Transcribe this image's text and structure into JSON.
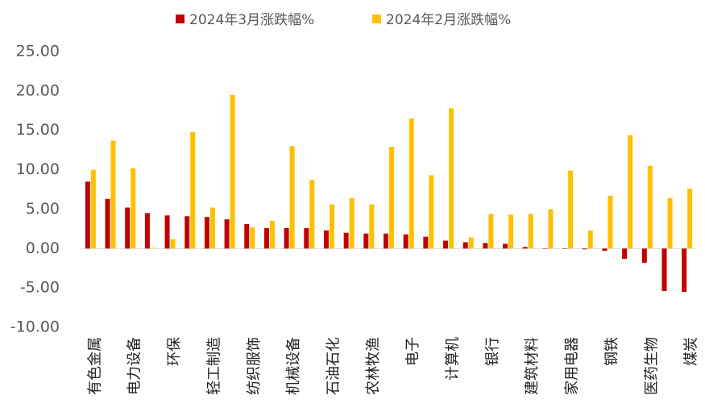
{
  "chart_data": {
    "type": "bar",
    "categories": [
      "有色金属",
      null,
      "电力设备",
      null,
      "环保",
      null,
      "轻工制造",
      null,
      "纺织服饰",
      null,
      "机械设备",
      null,
      "石油石化",
      null,
      "农林牧渔",
      null,
      "电子",
      null,
      "计算机",
      null,
      "银行",
      null,
      "建筑材料",
      null,
      "家用电器",
      null,
      "钢铁",
      null,
      "医药生物",
      null,
      "煤炭"
    ],
    "series": [
      {
        "name": "2024年3月涨跌幅%",
        "color": "#c00000",
        "values": [
          8.5,
          6.3,
          5.2,
          4.5,
          4.2,
          4.1,
          4.0,
          3.7,
          3.1,
          2.6,
          2.6,
          2.6,
          2.3,
          2.0,
          1.9,
          1.9,
          1.8,
          1.5,
          1.0,
          0.8,
          0.7,
          0.6,
          0.2,
          0.0,
          0.0,
          -0.1,
          -0.3,
          -1.3,
          -1.8,
          -5.4,
          -5.5
        ]
      },
      {
        "name": "2024年2月涨跌幅%",
        "color": "#ffc000",
        "values": [
          10.0,
          13.7,
          10.2,
          0.1,
          1.2,
          14.8,
          5.2,
          19.5,
          2.7,
          3.5,
          13.0,
          8.7,
          5.6,
          6.4,
          5.6,
          12.9,
          16.5,
          9.3,
          17.8,
          1.4,
          4.4,
          4.3,
          4.4,
          5.0,
          9.9,
          2.3,
          6.7,
          14.4,
          10.5,
          6.4,
          7.6
        ]
      }
    ],
    "ylim": [
      -10,
      25
    ],
    "yticks": [
      {
        "value": -10,
        "label": "-10.00"
      },
      {
        "value": -5,
        "label": "-5.00"
      },
      {
        "value": 0,
        "label": "0.00"
      },
      {
        "value": 5,
        "label": "5.00"
      },
      {
        "value": 10,
        "label": "10.00"
      },
      {
        "value": 15,
        "label": "15.00"
      },
      {
        "value": 20,
        "label": "20.00"
      },
      {
        "value": 25,
        "label": "25.00"
      }
    ],
    "legend": "top"
  }
}
